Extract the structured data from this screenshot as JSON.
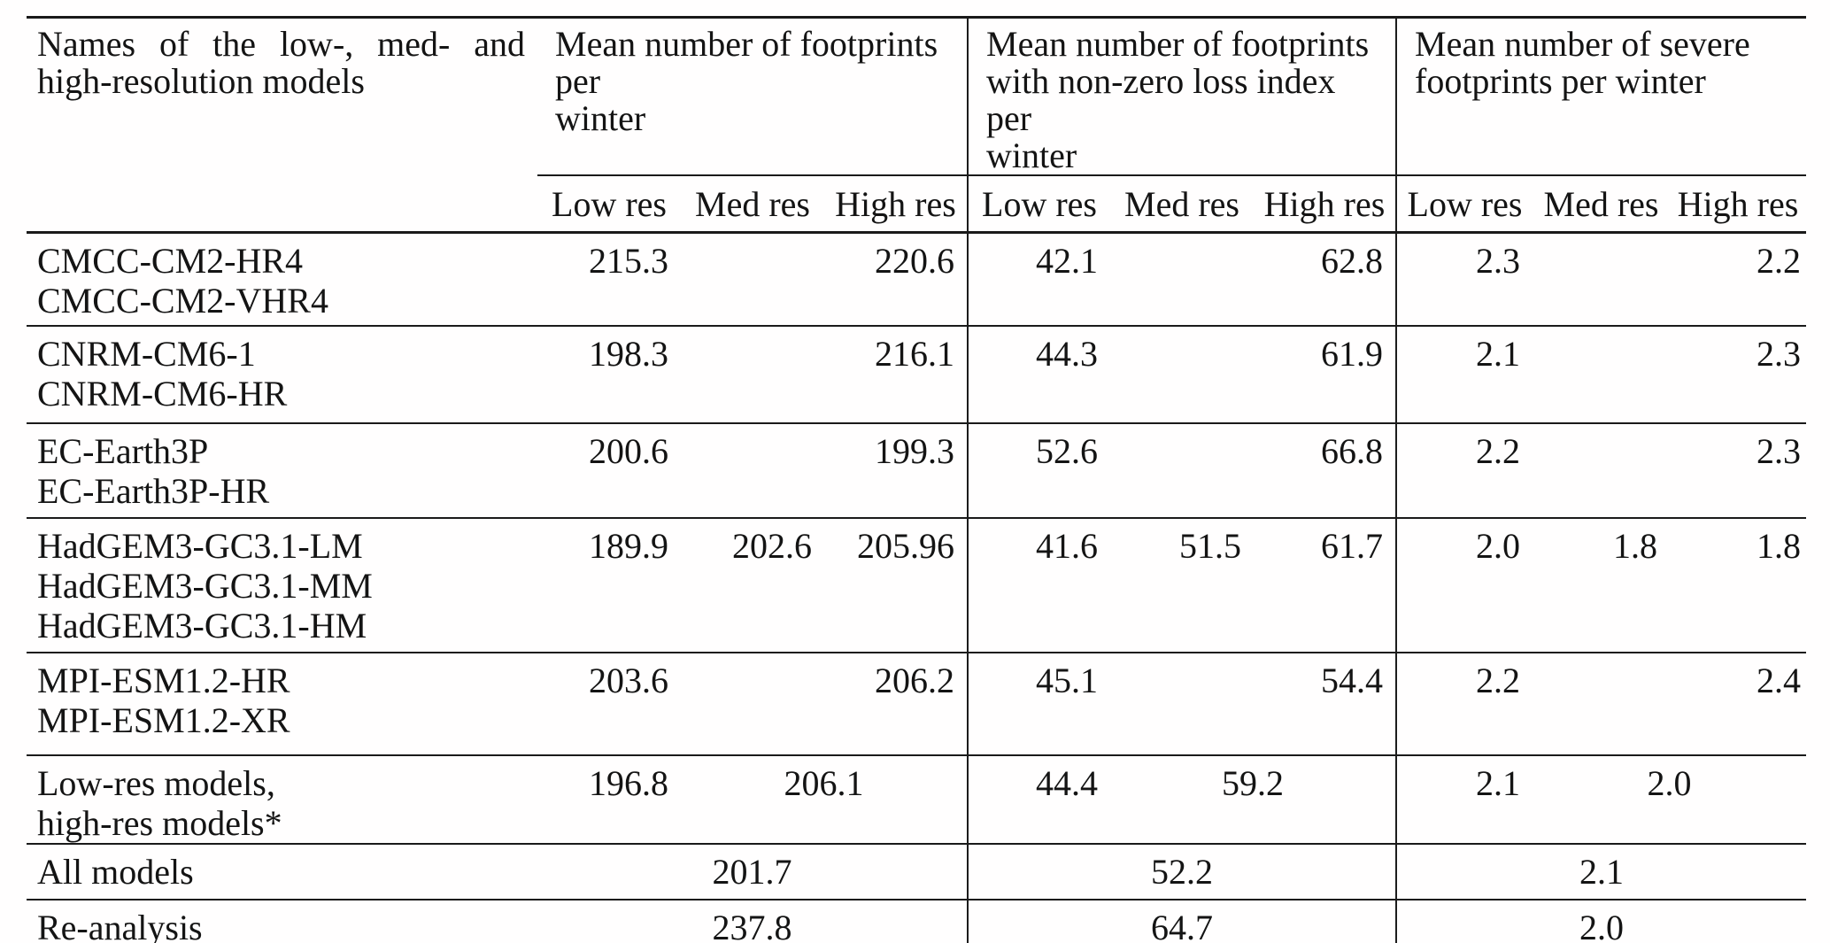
{
  "table": {
    "corner_header": "Names of the low-, med- and high-resolution models",
    "group_headers": [
      "Mean number of footprints per\nwinter",
      "Mean number of footprints\nwith non-zero loss index per\nwinter",
      "Mean number of severe\nfootprints per winter"
    ],
    "sub_headers": [
      "Low res",
      "Med res",
      "High res",
      "Low res",
      "Med res",
      "High res",
      "Low res",
      "Med res",
      "High res"
    ],
    "rows": [
      {
        "names": [
          "CMCC-CM2-HR4",
          "CMCC-CM2-VHR4"
        ],
        "groups": [
          [
            {
              "v": "215.3",
              "span": 1
            },
            {
              "v": "",
              "span": 1
            },
            {
              "v": "220.6",
              "span": 1
            }
          ],
          [
            {
              "v": "42.1",
              "span": 1
            },
            {
              "v": "",
              "span": 1
            },
            {
              "v": "62.8",
              "span": 1
            }
          ],
          [
            {
              "v": "2.3",
              "span": 1
            },
            {
              "v": "",
              "span": 1
            },
            {
              "v": "2.2",
              "span": 1
            }
          ]
        ]
      },
      {
        "names": [
          "CNRM-CM6-1",
          "CNRM-CM6-HR"
        ],
        "groups": [
          [
            {
              "v": "198.3",
              "span": 1
            },
            {
              "v": "",
              "span": 1
            },
            {
              "v": "216.1",
              "span": 1
            }
          ],
          [
            {
              "v": "44.3",
              "span": 1
            },
            {
              "v": "",
              "span": 1
            },
            {
              "v": "61.9",
              "span": 1
            }
          ],
          [
            {
              "v": "2.1",
              "span": 1
            },
            {
              "v": "",
              "span": 1
            },
            {
              "v": "2.3",
              "span": 1
            }
          ]
        ]
      },
      {
        "names": [
          "EC-Earth3P",
          "EC-Earth3P-HR"
        ],
        "groups": [
          [
            {
              "v": "200.6",
              "span": 1
            },
            {
              "v": "",
              "span": 1
            },
            {
              "v": "199.3",
              "span": 1
            }
          ],
          [
            {
              "v": "52.6",
              "span": 1
            },
            {
              "v": "",
              "span": 1
            },
            {
              "v": "66.8",
              "span": 1
            }
          ],
          [
            {
              "v": "2.2",
              "span": 1
            },
            {
              "v": "",
              "span": 1
            },
            {
              "v": "2.3",
              "span": 1
            }
          ]
        ]
      },
      {
        "names": [
          "HadGEM3-GC3.1-LM",
          "HadGEM3-GC3.1-MM",
          "HadGEM3-GC3.1-HM"
        ],
        "groups": [
          [
            {
              "v": "189.9",
              "span": 1
            },
            {
              "v": "202.6",
              "span": 1
            },
            {
              "v": "205.96",
              "span": 1
            }
          ],
          [
            {
              "v": "41.6",
              "span": 1
            },
            {
              "v": "51.5",
              "span": 1
            },
            {
              "v": "61.7",
              "span": 1
            }
          ],
          [
            {
              "v": "2.0",
              "span": 1
            },
            {
              "v": "1.8",
              "span": 1
            },
            {
              "v": "1.8",
              "span": 1
            }
          ]
        ]
      },
      {
        "names": [
          "MPI-ESM1.2-HR",
          "MPI-ESM1.2-XR"
        ],
        "groups": [
          [
            {
              "v": "203.6",
              "span": 1
            },
            {
              "v": "",
              "span": 1
            },
            {
              "v": "206.2",
              "span": 1
            }
          ],
          [
            {
              "v": "45.1",
              "span": 1
            },
            {
              "v": "",
              "span": 1
            },
            {
              "v": "54.4",
              "span": 1
            }
          ],
          [
            {
              "v": "2.2",
              "span": 1
            },
            {
              "v": "",
              "span": 1
            },
            {
              "v": "2.4",
              "span": 1
            }
          ]
        ]
      },
      {
        "names": [
          "Low-res models,",
          "high-res models*"
        ],
        "groups": [
          [
            {
              "v": "196.8",
              "span": 1
            },
            {
              "v": "206.1",
              "span": 2
            }
          ],
          [
            {
              "v": "44.4",
              "span": 1
            },
            {
              "v": "59.2",
              "span": 2
            }
          ],
          [
            {
              "v": "2.1",
              "span": 1
            },
            {
              "v": "2.0",
              "span": 2
            }
          ]
        ]
      },
      {
        "names": [
          "All models"
        ],
        "groups": [
          [
            {
              "v": "201.7",
              "span": 3
            }
          ],
          [
            {
              "v": "52.2",
              "span": 3
            }
          ],
          [
            {
              "v": "2.1",
              "span": 3
            }
          ]
        ]
      },
      {
        "names": [
          "Re-analysis"
        ],
        "groups": [
          [
            {
              "v": "237.8",
              "span": 3
            }
          ],
          [
            {
              "v": "64.7",
              "span": 3
            }
          ],
          [
            {
              "v": "2.0",
              "span": 3
            }
          ]
        ]
      }
    ]
  }
}
